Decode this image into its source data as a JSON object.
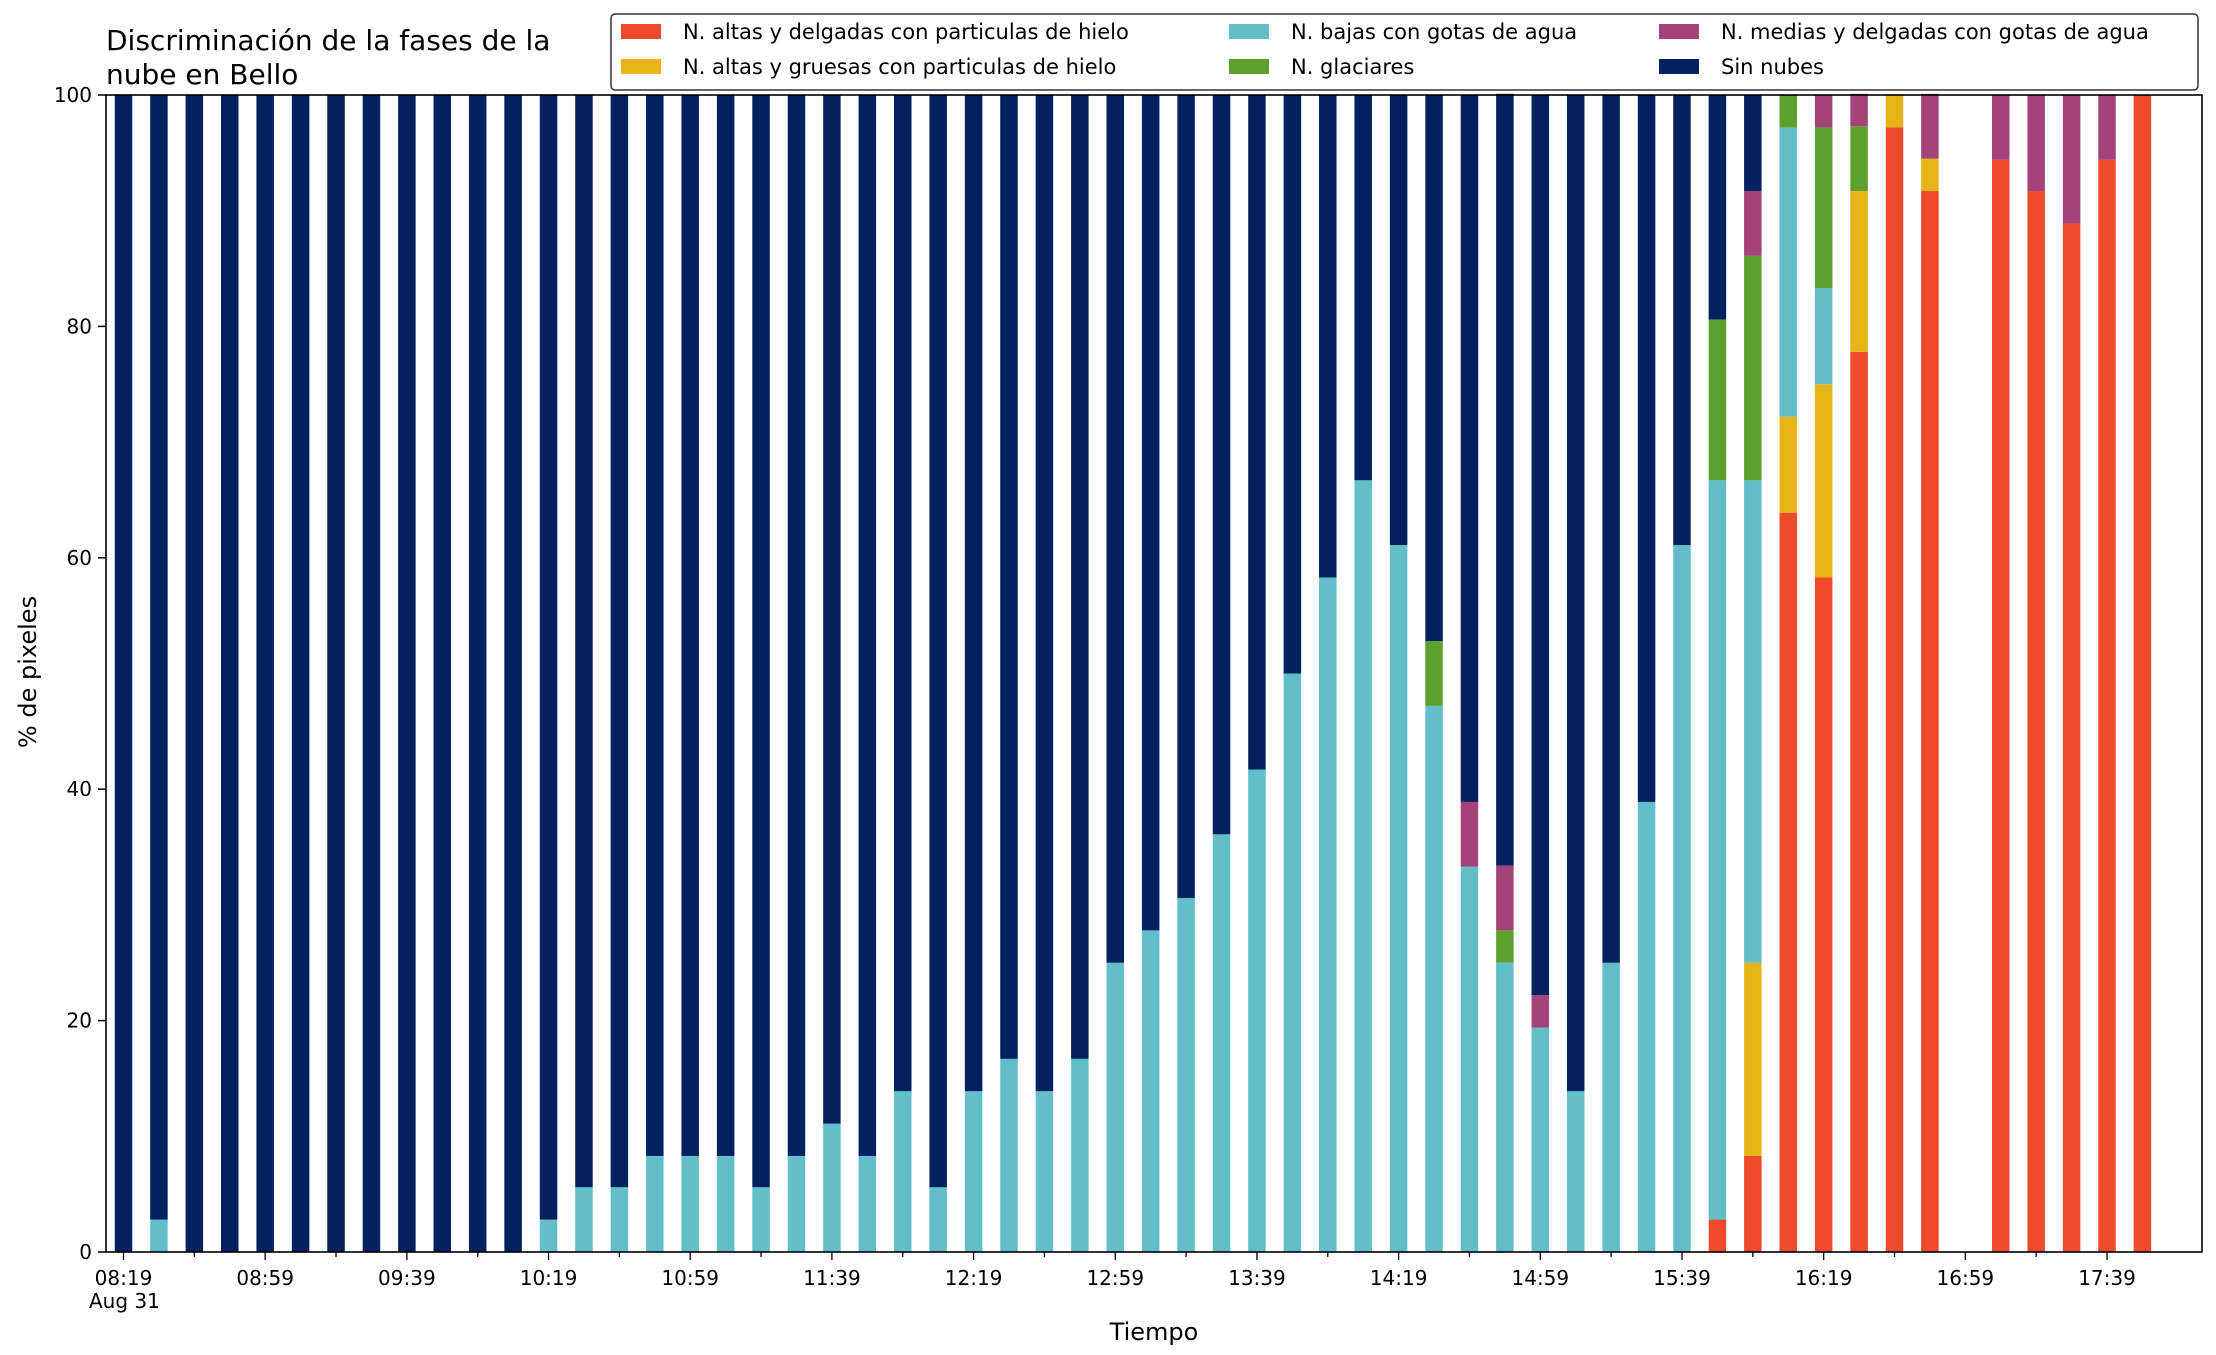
{
  "chart_data": {
    "type": "bar",
    "stacked": true,
    "title": "Discriminación de la fases de la\nnube en Bello",
    "xlabel": "Tiempo",
    "ylabel": "% de pixeles",
    "ylim": [
      0,
      100
    ],
    "yticks": [
      0,
      20,
      40,
      60,
      80,
      100
    ],
    "x_tick_labels": [
      "08:19",
      "08:59",
      "09:39",
      "10:19",
      "10:59",
      "11:39",
      "12:19",
      "12:59",
      "13:39",
      "14:19",
      "14:59",
      "15:39",
      "16:19",
      "16:59",
      "17:39"
    ],
    "x_date_label": "Aug 31",
    "legend_position": "top-right",
    "categories": [
      "08:19",
      "08:29",
      "08:39",
      "08:49",
      "08:59",
      "09:09",
      "09:19",
      "09:29",
      "09:39",
      "09:49",
      "09:59",
      "10:09",
      "10:19",
      "10:29",
      "10:39",
      "10:49",
      "10:59",
      "11:09",
      "11:19",
      "11:29",
      "11:39",
      "11:49",
      "11:59",
      "12:09",
      "12:19",
      "12:29",
      "12:39",
      "12:49",
      "12:59",
      "13:09",
      "13:19",
      "13:29",
      "13:39",
      "13:49",
      "13:59",
      "14:09",
      "14:19",
      "14:29",
      "14:39",
      "14:49",
      "14:59",
      "15:09",
      "15:19",
      "15:29",
      "15:39",
      "15:49",
      "15:59",
      "16:09",
      "16:19",
      "16:29",
      "16:39",
      "16:49",
      "16:59",
      "17:09",
      "17:19",
      "17:29",
      "17:39",
      "17:49"
    ],
    "series": [
      {
        "name": "N. altas y delgadas con particulas de hielo",
        "color": "#ee4a2b",
        "values": [
          0,
          0,
          0,
          0,
          0,
          0,
          0,
          0,
          0,
          0,
          0,
          0,
          0,
          0,
          0,
          0,
          0,
          0,
          0,
          0,
          0,
          0,
          0,
          0,
          0,
          0,
          0,
          0,
          0,
          0,
          0,
          0,
          0,
          0,
          0,
          0,
          0,
          0,
          0,
          0,
          0,
          0,
          0,
          0,
          0,
          2.8,
          8.3,
          63.9,
          58.3,
          77.8,
          97.2,
          91.7,
          null,
          94.4,
          91.7,
          88.9,
          94.4,
          100
        ]
      },
      {
        "name": "N. altas y gruesas con particulas de hielo",
        "color": "#e7b418",
        "values": [
          0,
          0,
          0,
          0,
          0,
          0,
          0,
          0,
          0,
          0,
          0,
          0,
          0,
          0,
          0,
          0,
          0,
          0,
          0,
          0,
          0,
          0,
          0,
          0,
          0,
          0,
          0,
          0,
          0,
          0,
          0,
          0,
          0,
          0,
          0,
          0,
          0,
          0,
          0,
          0,
          0,
          0,
          0,
          0,
          0,
          0,
          16.7,
          8.3,
          16.7,
          13.9,
          2.8,
          2.8,
          null,
          0,
          0,
          0,
          0,
          0
        ]
      },
      {
        "name": "N. bajas con gotas de agua",
        "color": "#62bec9",
        "values": [
          0,
          2.8,
          0,
          0,
          0,
          0,
          0,
          0,
          0,
          0,
          0,
          0,
          2.8,
          5.6,
          5.6,
          8.3,
          8.3,
          8.3,
          5.6,
          8.3,
          11.1,
          8.3,
          13.9,
          5.6,
          13.9,
          16.7,
          13.9,
          16.7,
          25,
          27.8,
          30.6,
          36.1,
          41.7,
          50,
          58.3,
          66.7,
          61.1,
          47.2,
          33.3,
          25,
          19.4,
          13.9,
          25,
          38.9,
          61.1,
          63.9,
          41.7,
          25,
          8.3,
          0,
          0,
          0,
          null,
          0,
          0,
          0,
          0,
          0
        ]
      },
      {
        "name": "N. glaciares",
        "color": "#5ea02c",
        "values": [
          0,
          0,
          0,
          0,
          0,
          0,
          0,
          0,
          0,
          0,
          0,
          0,
          0,
          0,
          0,
          0,
          0,
          0,
          0,
          0,
          0,
          0,
          0,
          0,
          0,
          0,
          0,
          0,
          0,
          0,
          0,
          0,
          0,
          0,
          0,
          0,
          0,
          5.6,
          0,
          2.8,
          0,
          0,
          0,
          0,
          0,
          13.9,
          19.4,
          2.8,
          13.9,
          5.6,
          0,
          0,
          null,
          0,
          0,
          0,
          0,
          0
        ]
      },
      {
        "name": "N. medias y delgadas con gotas de agua",
        "color": "#a3437a",
        "values": [
          0,
          0,
          0,
          0,
          0,
          0,
          0,
          0,
          0,
          0,
          0,
          0,
          0,
          0,
          0,
          0,
          0,
          0,
          0,
          0,
          0,
          0,
          0,
          0,
          0,
          0,
          0,
          0,
          0,
          0,
          0,
          0,
          0,
          0,
          0,
          0,
          0,
          0,
          5.6,
          5.6,
          2.8,
          0,
          0,
          0,
          0,
          0,
          5.6,
          0,
          2.8,
          2.8,
          0,
          5.6,
          null,
          5.6,
          8.3,
          11.1,
          5.6,
          0
        ]
      },
      {
        "name": "Sin nubes",
        "color": "#03205f",
        "values": [
          100,
          97.2,
          100,
          100,
          100,
          100,
          100,
          100,
          100,
          100,
          100,
          100,
          97.2,
          94.4,
          94.4,
          91.7,
          91.7,
          91.7,
          94.4,
          91.7,
          88.9,
          91.7,
          86.1,
          94.4,
          86.1,
          83.3,
          86.1,
          83.3,
          75,
          72.2,
          69.4,
          63.9,
          58.3,
          50,
          41.7,
          33.3,
          38.9,
          47.2,
          61.1,
          66.7,
          77.8,
          86.1,
          75,
          61.1,
          38.9,
          19.4,
          8.3,
          0,
          0,
          0,
          0,
          0,
          null,
          0,
          0,
          0,
          0,
          0
        ]
      }
    ]
  }
}
